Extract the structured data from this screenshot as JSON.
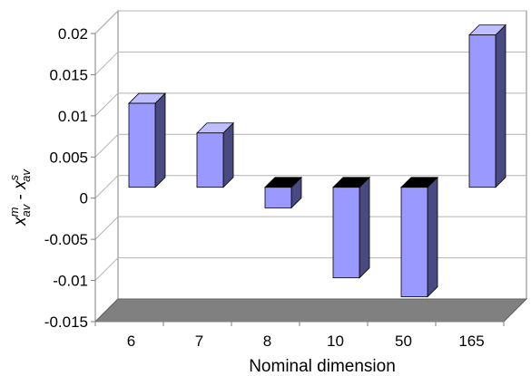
{
  "chart_data": {
    "type": "bar",
    "style": "3d-column",
    "categories": [
      "6",
      "7",
      "8",
      "10",
      "50",
      "165"
    ],
    "values": [
      0.0102,
      0.0066,
      -0.0025,
      -0.011,
      -0.0133,
      0.0185
    ],
    "xlabel": "Nominal dimension",
    "ylabel": {
      "main": "x",
      "sup1": "m",
      "sub1": "av",
      "minus": " - ",
      "main2": "x",
      "sup2": "s",
      "sub2": "av"
    },
    "ylim": [
      -0.015,
      0.02
    ],
    "yticks": [
      "-0.015",
      "-0.01",
      "-0.005",
      "0",
      "0.005",
      "0.01",
      "0.015",
      "0.02"
    ],
    "grid": true,
    "legend": "none",
    "colors": {
      "bar_front": "#9999ff",
      "bar_side": "#4a4a82",
      "bar_top": "#bebeff",
      "floor": "#808080",
      "grid": "#b4b4b4",
      "axis": "#7f7f7f"
    }
  }
}
